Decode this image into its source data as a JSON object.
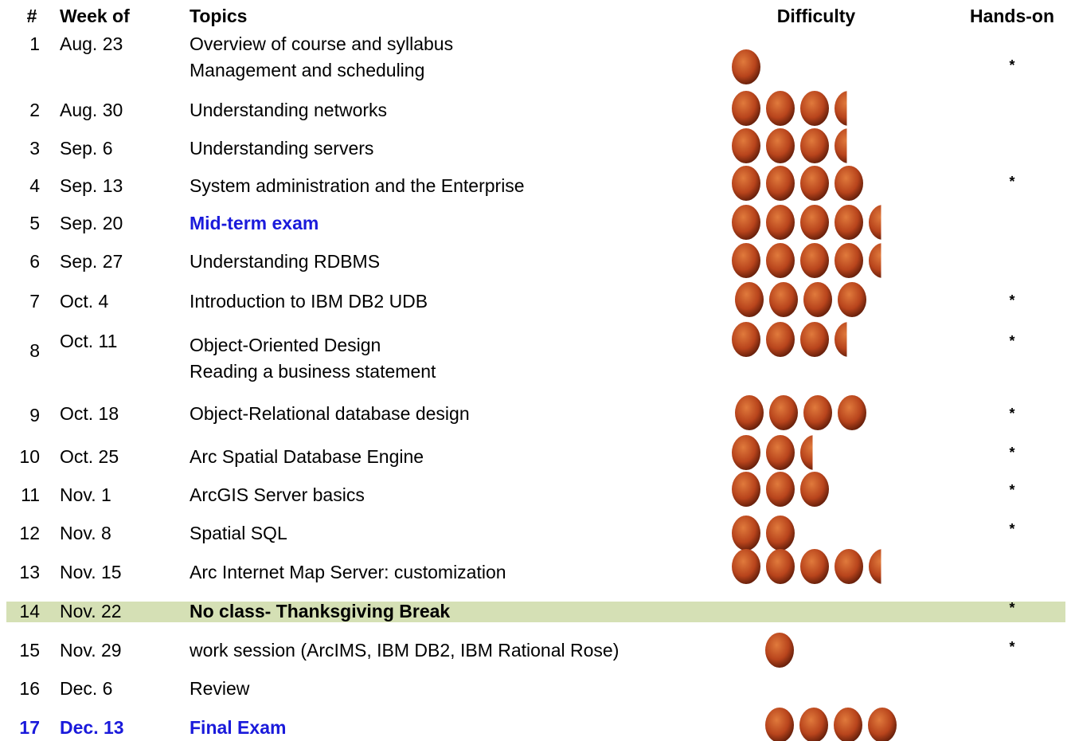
{
  "header": {
    "columns": [
      "#",
      "Week of",
      "Topics",
      "Difficulty",
      "Hands-on"
    ]
  },
  "table": {
    "rows": [
      {
        "number": "1",
        "week": "Aug. 23",
        "topics": [
          "Overview of course and syllabus",
          "Management and scheduling"
        ],
        "difficulty": 1,
        "hands_on": "*"
      },
      {
        "number": "2",
        "week": "Aug. 30",
        "topics": [
          "Understanding networks"
        ],
        "difficulty": 3.5
      },
      {
        "number": "3",
        "week": "Sep. 6",
        "topics": [
          "Understanding servers"
        ],
        "difficulty": 3.5
      },
      {
        "number": "4",
        "week": "Sep. 13",
        "topics": [
          "System administration and the Enterprise"
        ],
        "difficulty": 4,
        "hands_on": "*"
      },
      {
        "number": "5",
        "week": "Sep. 20",
        "topics": [
          "Mid-term exam"
        ],
        "difficulty": 4.5
      },
      {
        "number": "6",
        "week": "Sep. 27",
        "topics": [
          "Understanding RDBMS"
        ],
        "difficulty": 4.5
      },
      {
        "number": "7",
        "week": "Oct. 4",
        "topics": [
          "Introduction to IBM DB2 UDB"
        ],
        "difficulty": 4,
        "hands_on": "*"
      },
      {
        "number": "8",
        "week": "Oct. 11",
        "topics": [
          "Object-Oriented Design",
          "Reading a business statement"
        ],
        "difficulty": 3.5,
        "hands_on": "*"
      },
      {
        "number": "9",
        "week": "Oct. 18",
        "topics": [
          "Object-Relational database design"
        ],
        "difficulty": 4,
        "hands_on": "*"
      },
      {
        "number": "10",
        "week": "Oct. 25",
        "topics": [
          "Arc Spatial Database Engine"
        ],
        "difficulty": 2.5,
        "hands_on": "*"
      },
      {
        "number": "11",
        "week": "Nov. 1",
        "topics": [
          "ArcGIS Server basics"
        ],
        "difficulty": 3,
        "hands_on": "*"
      },
      {
        "number": "12",
        "week": "Nov. 8",
        "topics": [
          "Spatial SQL"
        ],
        "difficulty": 2,
        "hands_on": "*"
      },
      {
        "number": "13",
        "week": "Nov. 15",
        "topics": [
          "Arc Internet Map Server: customization"
        ],
        "difficulty": 4.5
      },
      {
        "number": "14",
        "week": "Nov. 22",
        "topics": [
          "No class- Thanksgiving Break"
        ],
        "hands_on": "*"
      },
      {
        "number": "15",
        "week": "Nov. 29",
        "topics": [
          "work session (ArcIMS, IBM DB2, IBM Rational Rose)"
        ],
        "difficulty": 1,
        "hands_on": "*"
      },
      {
        "number": "16",
        "week": "Dec. 6",
        "topics": [
          "Review"
        ]
      },
      {
        "number": "17",
        "week": "Dec. 13",
        "topics": [
          "Final Exam"
        ],
        "difficulty": 4
      }
    ]
  }
}
